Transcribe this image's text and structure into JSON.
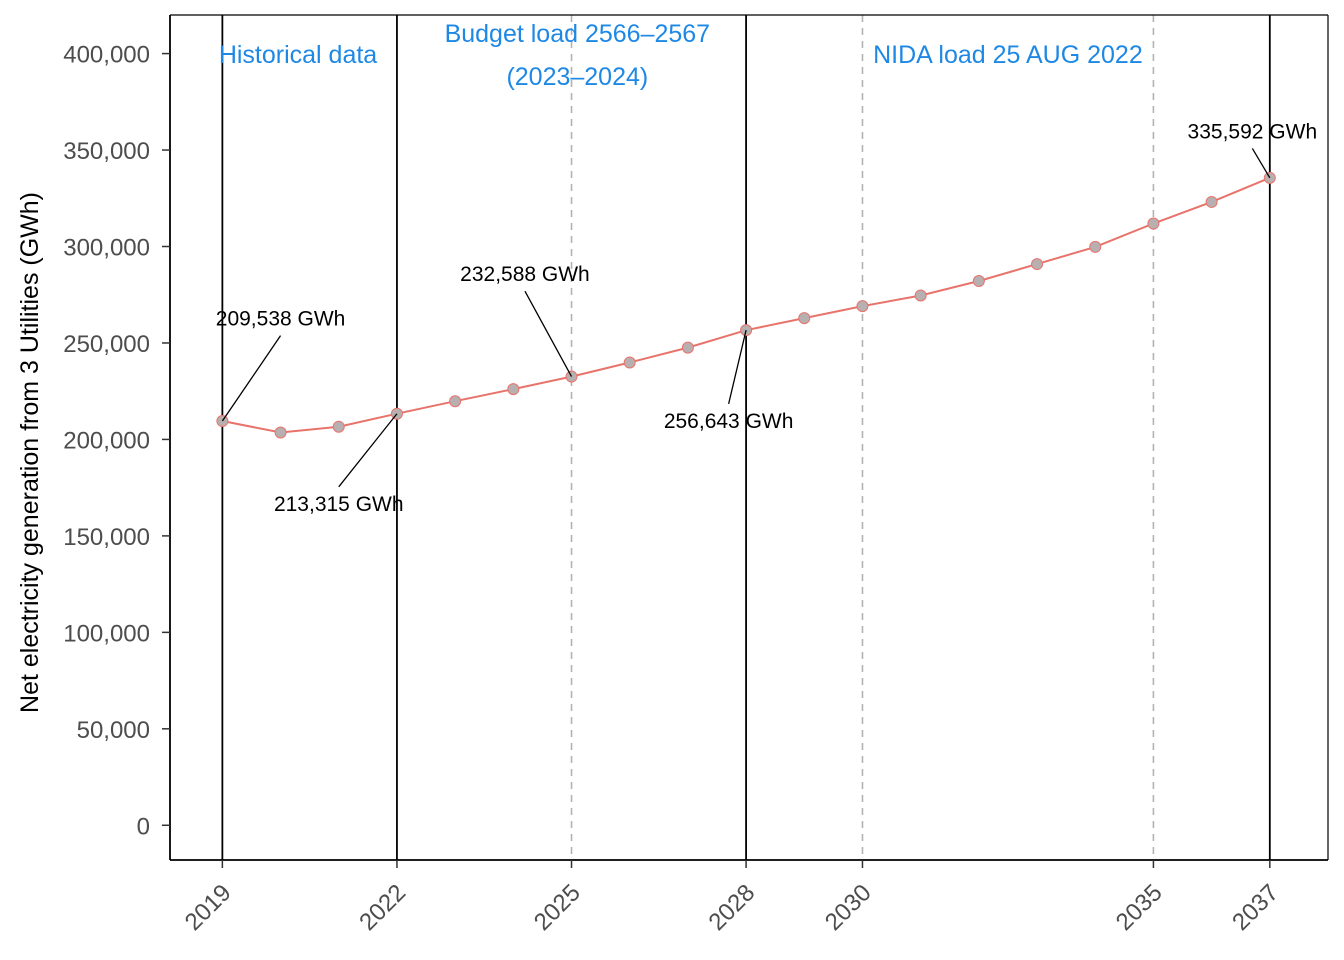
{
  "chart_data": {
    "type": "line",
    "title": "",
    "xlabel": "",
    "ylabel": "Net electricity generation from 3 Utilities (GWh)",
    "x_ticks": [
      2019,
      2022,
      2025,
      2028,
      2030,
      2035,
      2037
    ],
    "x_tick_labels": [
      "2019",
      "2022",
      "2025",
      "2028",
      "2030",
      "2035",
      "2037"
    ],
    "xlim": [
      2018.1,
      2038.0
    ],
    "y_ticks": [
      0,
      50000,
      100000,
      150000,
      200000,
      250000,
      300000,
      350000,
      400000
    ],
    "y_tick_labels": [
      "0",
      "50,000",
      "100,000",
      "150,000",
      "200,000",
      "250,000",
      "300,000",
      "350,000",
      "400,000"
    ],
    "ylim": [
      -18000,
      420000
    ],
    "grid": false,
    "solid_vlines": [
      2019,
      2022,
      2028,
      2037
    ],
    "dashed_vlines": [
      2025,
      2030,
      2035
    ],
    "line_color": "#e8736b",
    "marker_color": "#b8b0b0",
    "region_label_color": "#1e88e5",
    "region_labels": [
      {
        "lines": [
          "Historical data"
        ],
        "x": 2020.3,
        "y_top": 395000
      },
      {
        "lines": [
          "Budget load 2566–2567",
          "(2023–2024)"
        ],
        "x": 2025.1,
        "y_top": 406000
      },
      {
        "lines": [
          "NIDA load 25 AUG 2022"
        ],
        "x": 2032.5,
        "y_top": 395000
      }
    ],
    "series": [
      {
        "x": [
          2019,
          2020,
          2021,
          2022,
          2023,
          2024,
          2025,
          2026,
          2027,
          2028,
          2029,
          2030,
          2031,
          2032,
          2033,
          2034,
          2035,
          2036,
          2037
        ],
        "values": [
          209538,
          203600,
          206600,
          213315,
          219800,
          226100,
          232588,
          239900,
          247600,
          256643,
          262900,
          269100,
          274600,
          282100,
          290900,
          299800,
          311900,
          323100,
          335592
        ]
      }
    ],
    "annotations": [
      {
        "text": "209,538 GWh",
        "x": 2019,
        "y": 209538,
        "label_x": 2020.0,
        "label_y": 259000
      },
      {
        "text": "213,315 GWh",
        "x": 2022,
        "y": 213315,
        "label_x": 2021.0,
        "label_y": 163000
      },
      {
        "text": "232,588 GWh",
        "x": 2025,
        "y": 232588,
        "label_x": 2024.2,
        "label_y": 282000
      },
      {
        "text": "256,643 GWh",
        "x": 2028,
        "y": 256643,
        "label_x": 2027.7,
        "label_y": 206000
      },
      {
        "text": "335,592 GWh",
        "x": 2037,
        "y": 335592,
        "label_x": 2036.7,
        "label_y": 356000
      }
    ]
  }
}
